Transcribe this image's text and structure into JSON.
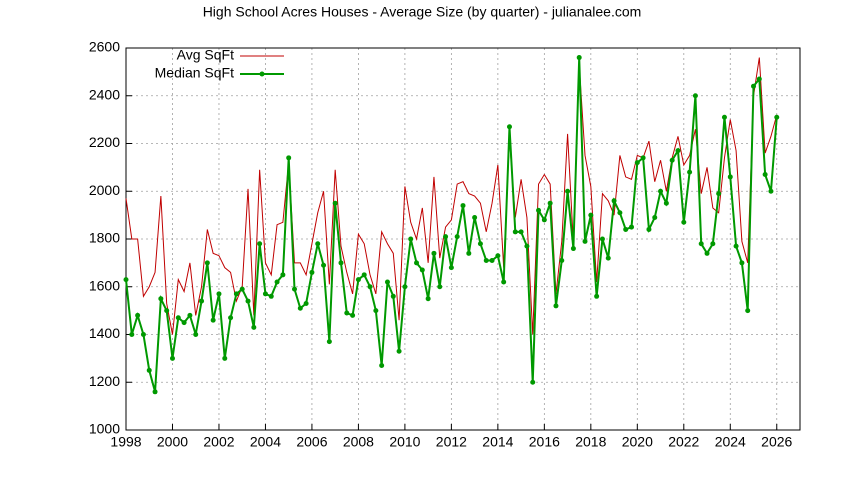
{
  "chart_data": {
    "type": "line",
    "title": "High School Acres Houses - Average Size (by quarter) - julianalee.com",
    "x": [
      1998,
      1998.25,
      1998.5,
      1998.75,
      1999,
      1999.25,
      1999.5,
      1999.75,
      2000,
      2000.25,
      2000.5,
      2000.75,
      2001,
      2001.25,
      2001.5,
      2001.75,
      2002,
      2002.25,
      2002.5,
      2002.75,
      2003,
      2003.25,
      2003.5,
      2003.75,
      2004,
      2004.25,
      2004.5,
      2004.75,
      2005,
      2005.25,
      2005.5,
      2005.75,
      2006,
      2006.25,
      2006.5,
      2006.75,
      2007,
      2007.25,
      2007.5,
      2007.75,
      2008,
      2008.25,
      2008.5,
      2008.75,
      2009,
      2009.25,
      2009.5,
      2009.75,
      2010,
      2010.25,
      2010.5,
      2010.75,
      2011,
      2011.25,
      2011.5,
      2011.75,
      2012,
      2012.25,
      2012.5,
      2012.75,
      2013,
      2013.25,
      2013.5,
      2013.75,
      2014,
      2014.25,
      2014.5,
      2014.75,
      2015,
      2015.25,
      2015.5,
      2015.75,
      2016,
      2016.25,
      2016.5,
      2016.75,
      2017,
      2017.25,
      2017.5,
      2017.75,
      2018,
      2018.25,
      2018.5,
      2018.75,
      2019,
      2019.25,
      2019.5,
      2019.75,
      2020,
      2020.25,
      2020.5,
      2020.75,
      2021,
      2021.25,
      2021.5,
      2021.75,
      2022,
      2022.25,
      2022.5,
      2022.75,
      2023,
      2023.25,
      2023.5,
      2023.75,
      2024,
      2024.25,
      2024.5,
      2024.75,
      2025,
      2025.25,
      2025.5,
      2025.75,
      2026
    ],
    "series": [
      {
        "name": "Avg SqFt",
        "color": "#c00000",
        "points": false,
        "values": [
          1970,
          1800,
          1800,
          1560,
          1600,
          1660,
          1980,
          1530,
          1400,
          1630,
          1580,
          1700,
          1480,
          1600,
          1840,
          1740,
          1730,
          1680,
          1660,
          1540,
          1600,
          2010,
          1480,
          2090,
          1700,
          1650,
          1860,
          1870,
          2120,
          1700,
          1700,
          1650,
          1780,
          1910,
          2000,
          1610,
          2090,
          1770,
          1660,
          1570,
          1820,
          1780,
          1650,
          1570,
          1830,
          1780,
          1740,
          1460,
          2020,
          1870,
          1800,
          1930,
          1700,
          2060,
          1720,
          1850,
          1880,
          2030,
          2040,
          1990,
          1980,
          1950,
          1830,
          1950,
          2110,
          1680,
          2220,
          1890,
          2050,
          1890,
          1400,
          2030,
          2070,
          2030,
          1570,
          1790,
          2240,
          1780,
          2530,
          2150,
          2020,
          1620,
          1990,
          1960,
          1900,
          2150,
          2060,
          2050,
          2150,
          2140,
          2210,
          2040,
          2130,
          2000,
          2140,
          2230,
          2110,
          2150,
          2260,
          1990,
          2100,
          1930,
          1910,
          2140,
          2300,
          2170,
          1790,
          1700,
          2400,
          2560,
          2160,
          2230,
          2320
        ]
      },
      {
        "name": "Median SqFt",
        "color": "#009900",
        "points": true,
        "values": [
          1630,
          1400,
          1480,
          1400,
          1250,
          1160,
          1550,
          1500,
          1300,
          1470,
          1450,
          1480,
          1400,
          1540,
          1700,
          1460,
          1570,
          1300,
          1470,
          1570,
          1590,
          1540,
          1430,
          1780,
          1570,
          1560,
          1620,
          1650,
          2140,
          1590,
          1510,
          1530,
          1660,
          1780,
          1690,
          1370,
          1950,
          1700,
          1490,
          1480,
          1630,
          1650,
          1600,
          1500,
          1270,
          1620,
          1560,
          1330,
          1600,
          1800,
          1700,
          1670,
          1550,
          1740,
          1600,
          1810,
          1680,
          1810,
          1940,
          1740,
          1890,
          1780,
          1710,
          1710,
          1730,
          1620,
          2270,
          1830,
          1830,
          1770,
          1200,
          1920,
          1880,
          1950,
          1520,
          1710,
          2000,
          1760,
          2560,
          1790,
          1900,
          1560,
          1800,
          1720,
          1960,
          1910,
          1840,
          1850,
          2120,
          2140,
          1840,
          1890,
          2000,
          1950,
          2130,
          2170,
          1870,
          2080,
          2400,
          1780,
          1740,
          1780,
          1990,
          2310,
          2060,
          1770,
          1700,
          1500,
          2440,
          2470,
          2070,
          2000,
          2310
        ]
      }
    ],
    "xlim": [
      1998,
      2027
    ],
    "xticks": [
      1998,
      2000,
      2002,
      2004,
      2006,
      2008,
      2010,
      2012,
      2014,
      2016,
      2018,
      2020,
      2022,
      2024,
      2026
    ],
    "ylim": [
      1000,
      2600
    ],
    "yticks": [
      1000,
      1200,
      1400,
      1600,
      1800,
      2000,
      2200,
      2400,
      2600
    ],
    "grid": true,
    "legend": "top-left"
  }
}
